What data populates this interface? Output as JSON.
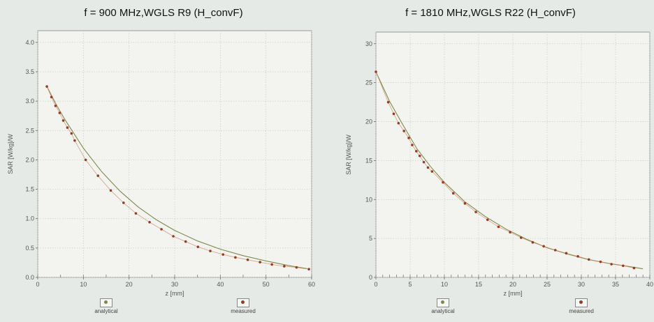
{
  "chart_data": [
    {
      "type": "line",
      "title": "f = 900 MHz,WGLS R9 (H_convF)",
      "xlabel": "z [mm]",
      "ylabel": "SAR [W/kg]/W",
      "xlim": [
        0,
        60
      ],
      "ylim": [
        0,
        4.2
      ],
      "xticks": [
        "0",
        "10",
        "20",
        "30",
        "40",
        "50",
        "60"
      ],
      "yticks": [
        "0.0",
        "0.5",
        "1.0",
        "1.5",
        "2.0",
        "2.5",
        "3.0",
        "3.5",
        "4.0"
      ],
      "grid": true,
      "legend_position": "bottom",
      "series": [
        {
          "name": "analytical",
          "color": "#7a8a4a",
          "x": [
            2,
            4,
            6,
            8,
            10,
            14,
            18,
            22,
            26,
            30,
            35,
            40,
            45,
            50,
            55,
            59
          ],
          "y": [
            3.25,
            2.95,
            2.68,
            2.44,
            2.2,
            1.8,
            1.47,
            1.2,
            0.98,
            0.8,
            0.62,
            0.48,
            0.37,
            0.28,
            0.2,
            0.15
          ]
        },
        {
          "name": "measured",
          "color": "#9a3a22",
          "x": [
            2,
            3,
            3.9,
            4.8,
            5.6,
            6.5,
            7.4,
            8.1,
            10.5,
            13.2,
            16,
            18.8,
            21.5,
            24.5,
            27.1,
            29.7,
            32.4,
            35.1,
            37.8,
            40.6,
            43.3,
            46,
            48.7,
            51.3,
            54,
            56.7,
            59.4
          ],
          "y": [
            3.25,
            3.07,
            2.92,
            2.8,
            2.67,
            2.55,
            2.45,
            2.33,
            2.0,
            1.73,
            1.48,
            1.27,
            1.09,
            0.94,
            0.82,
            0.7,
            0.61,
            0.52,
            0.45,
            0.39,
            0.34,
            0.3,
            0.26,
            0.22,
            0.19,
            0.17,
            0.14
          ]
        }
      ]
    },
    {
      "type": "line",
      "title": "f = 1810 MHz,WGLS R22 (H_convF)",
      "xlabel": "z [mm]",
      "ylabel": "SAR [W/kg]/W",
      "xlim": [
        0,
        40
      ],
      "ylim": [
        0,
        31.5
      ],
      "xticks": [
        "0",
        "5",
        "10",
        "15",
        "20",
        "25",
        "30",
        "35",
        "40"
      ],
      "yticks": [
        "0",
        "5",
        "10",
        "15",
        "20",
        "25",
        "30"
      ],
      "grid": true,
      "legend_position": "bottom",
      "series": [
        {
          "name": "analytical",
          "color": "#7a8a4a",
          "x": [
            0,
            2,
            4,
            6,
            8,
            10,
            13,
            16,
            19,
            22,
            25,
            28,
            31,
            34,
            37,
            39
          ],
          "y": [
            26.4,
            22.6,
            19.5,
            16.5,
            14.2,
            12.2,
            9.7,
            7.8,
            6.2,
            4.9,
            3.8,
            3.0,
            2.3,
            1.8,
            1.4,
            1.1
          ]
        },
        {
          "name": "measured",
          "color": "#9a3a22",
          "x": [
            0,
            1.8,
            2.6,
            3.3,
            4.1,
            4.8,
            5.3,
            5.9,
            6.4,
            7.0,
            7.6,
            8.2,
            9.8,
            11.3,
            13.0,
            14.6,
            16.3,
            17.9,
            19.6,
            21.2,
            22.9,
            24.5,
            26.2,
            27.8,
            29.5,
            31.1,
            32.8,
            34.4,
            36.1,
            37.7
          ],
          "y": [
            26.4,
            22.5,
            21.0,
            19.8,
            18.8,
            17.9,
            17.0,
            16.2,
            15.6,
            14.8,
            14.1,
            13.6,
            12.2,
            10.8,
            9.5,
            8.4,
            7.4,
            6.5,
            5.8,
            5.1,
            4.5,
            4.0,
            3.5,
            3.1,
            2.7,
            2.3,
            2.0,
            1.7,
            1.5,
            1.2
          ]
        }
      ]
    }
  ]
}
